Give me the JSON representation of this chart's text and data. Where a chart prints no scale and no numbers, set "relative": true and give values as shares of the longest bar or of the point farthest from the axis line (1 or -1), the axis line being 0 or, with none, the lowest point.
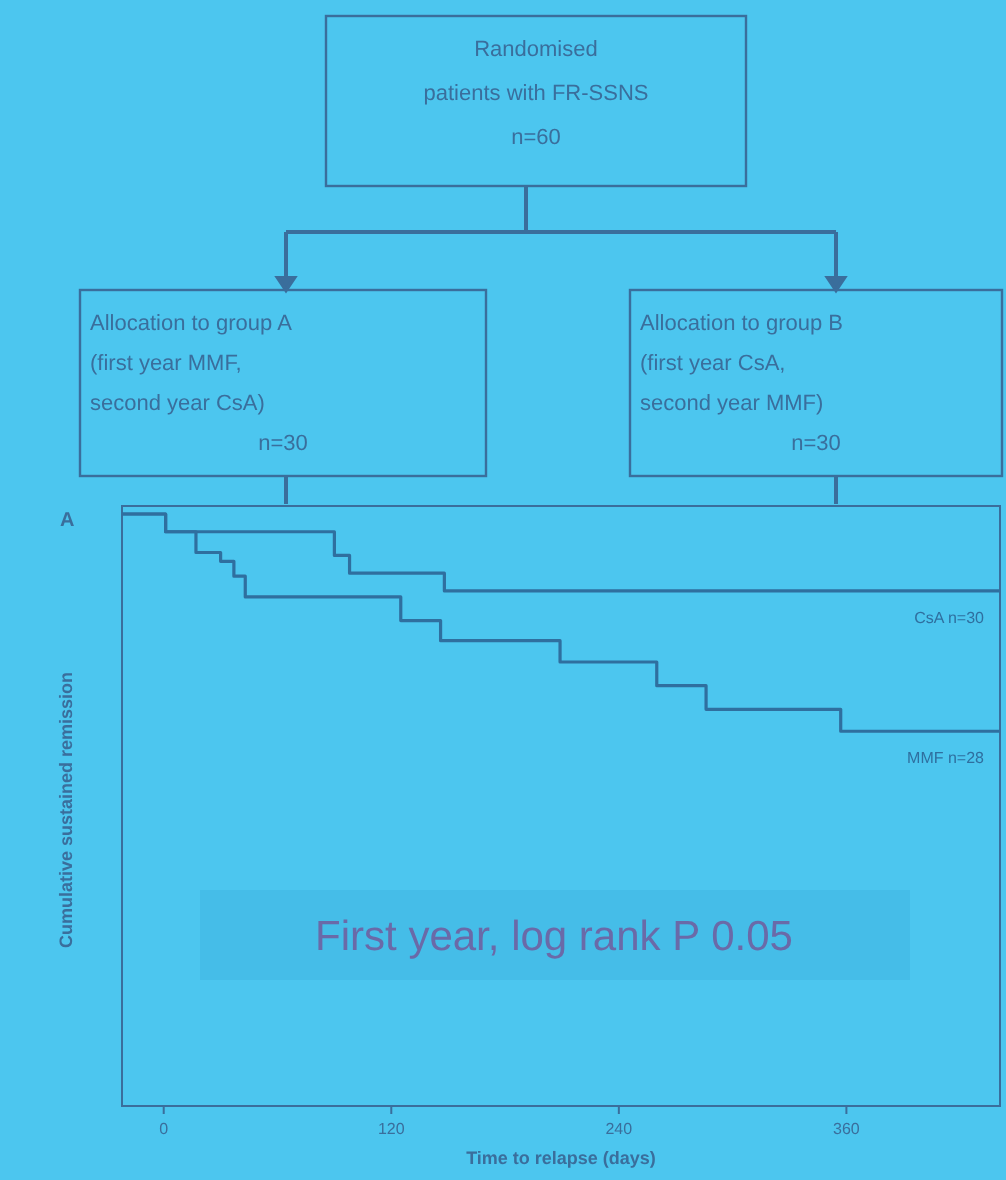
{
  "chart_data": [
    {
      "type": "other",
      "annotations": [
        "Randomised\npatients with FR-SSNS\nn=60",
        "Allocation to group A\n(first year MMF,\nsecond year CsA)\nn=30",
        "Allocation to group B\n(first year CsA,\nsecond year MMF)\nn=30"
      ]
    },
    {
      "type": "step",
      "relative": true,
      "xlabel": "Time to relapse (days)",
      "ylabel": "Cumulative sustained remission",
      "xlim": [
        -22,
        441
      ],
      "xticks": [
        0,
        120,
        240,
        360
      ],
      "annotations": [
        "A",
        "First year, log rank P 0.05"
      ],
      "series": [
        {
          "name": "CsA n=30",
          "color": "#2f6f9f",
          "x": [
            -22,
            1,
            90,
            98,
            148,
            441
          ],
          "values": [
            1.0,
            0.97,
            0.93,
            0.9,
            0.87,
            0.87
          ]
        },
        {
          "name": "MMF n=28",
          "color": "#2f6f9f",
          "x": [
            -22,
            1,
            17,
            30,
            37,
            43,
            125,
            146,
            209,
            260,
            286,
            357,
            441
          ],
          "values": [
            1.0,
            0.97,
            0.935,
            0.92,
            0.895,
            0.86,
            0.82,
            0.786,
            0.75,
            0.71,
            0.67,
            0.633,
            0.633
          ]
        }
      ]
    }
  ]
}
